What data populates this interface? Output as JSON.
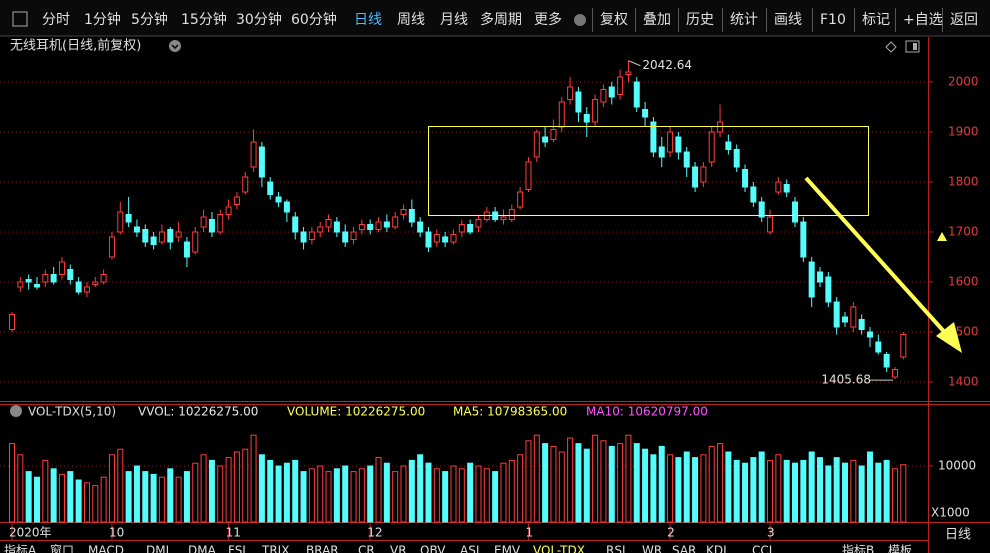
{
  "toolbar": {
    "tabs": [
      "分时",
      "1分钟",
      "5分钟",
      "15分钟",
      "30分钟",
      "60分钟",
      "日线",
      "周线",
      "月线",
      "多周期",
      "更多"
    ],
    "active_tab": "日线",
    "actions": [
      "复权",
      "叠加",
      "历史",
      "统计",
      "画线",
      "F10",
      "标记",
      "+自选",
      "返回"
    ]
  },
  "chart_data": [
    {
      "type": "candlestick",
      "title": "无线耳机(日线,前复权)",
      "categories": [
        "2020年",
        null,
        null,
        null,
        null,
        null,
        null,
        null,
        null,
        null,
        null,
        null,
        "10",
        null,
        null,
        null,
        null,
        null,
        null,
        null,
        null,
        null,
        null,
        null,
        null,
        null,
        "11",
        null,
        null,
        null,
        null,
        null,
        null,
        null,
        null,
        null,
        null,
        null,
        null,
        null,
        null,
        null,
        null,
        "12",
        null,
        null,
        null,
        null,
        null,
        null,
        null,
        null,
        null,
        null,
        null,
        null,
        null,
        null,
        null,
        null,
        null,
        null,
        "1",
        null,
        null,
        null,
        null,
        null,
        null,
        null,
        null,
        null,
        null,
        null,
        null,
        null,
        null,
        null,
        null,
        "2",
        null,
        null,
        null,
        null,
        null,
        null,
        null,
        null,
        null,
        null,
        null,
        "3",
        null,
        null,
        null,
        null,
        null,
        null,
        null,
        null,
        null,
        null,
        null,
        null,
        null,
        null,
        null,
        null
      ],
      "open": [
        1505,
        1590,
        1605,
        1595,
        1600,
        1615,
        1615,
        1625,
        1600,
        1580,
        1595,
        1600,
        1650,
        1700,
        1735,
        1710,
        1705,
        1690,
        1680,
        1705,
        1690,
        1680,
        1660,
        1710,
        1725,
        1700,
        1735,
        1755,
        1780,
        1830,
        1870,
        1800,
        1770,
        1760,
        1730,
        1700,
        1685,
        1700,
        1710,
        1720,
        1700,
        1685,
        1705,
        1715,
        1705,
        1720,
        1710,
        1735,
        1745,
        1720,
        1700,
        1680,
        1690,
        1680,
        1700,
        1715,
        1710,
        1725,
        1740,
        1725,
        1725,
        1750,
        1785,
        1850,
        1890,
        1885,
        1910,
        1965,
        1980,
        1935,
        1920,
        1960,
        1990,
        1975,
        2015,
        2000,
        1945,
        1920,
        1870,
        1860,
        1890,
        1860,
        1830,
        1800,
        1840,
        1900,
        1880,
        1865,
        1825,
        1790,
        1760,
        1700,
        1780,
        1795,
        1760,
        1720,
        1640,
        1620,
        1610,
        1560,
        1530,
        1510,
        1525,
        1500,
        1480,
        1455,
        1410,
        1450
      ],
      "high": [
        1540,
        1610,
        1615,
        1610,
        1625,
        1630,
        1650,
        1635,
        1610,
        1600,
        1610,
        1625,
        1700,
        1760,
        1770,
        1725,
        1715,
        1700,
        1715,
        1710,
        1720,
        1690,
        1710,
        1745,
        1740,
        1745,
        1765,
        1780,
        1820,
        1905,
        1880,
        1810,
        1780,
        1765,
        1740,
        1710,
        1710,
        1720,
        1735,
        1730,
        1715,
        1710,
        1725,
        1725,
        1730,
        1735,
        1740,
        1755,
        1765,
        1730,
        1710,
        1705,
        1700,
        1705,
        1725,
        1725,
        1735,
        1750,
        1750,
        1745,
        1755,
        1790,
        1850,
        1905,
        1910,
        1925,
        1970,
        2010,
        1990,
        1950,
        1975,
        1995,
        2000,
        2025,
        2042.64,
        2010,
        1960,
        1930,
        1890,
        1910,
        1900,
        1870,
        1840,
        1840,
        1910,
        1955,
        1895,
        1875,
        1835,
        1800,
        1770,
        1745,
        1810,
        1805,
        1770,
        1730,
        1650,
        1630,
        1620,
        1570,
        1540,
        1560,
        1535,
        1510,
        1495,
        1460,
        1430,
        1500
      ],
      "low": [
        1500,
        1580,
        1585,
        1585,
        1590,
        1595,
        1605,
        1595,
        1575,
        1570,
        1590,
        1595,
        1645,
        1695,
        1710,
        1690,
        1670,
        1665,
        1675,
        1665,
        1680,
        1630,
        1655,
        1700,
        1690,
        1695,
        1725,
        1745,
        1775,
        1820,
        1790,
        1765,
        1750,
        1720,
        1685,
        1665,
        1675,
        1690,
        1700,
        1690,
        1670,
        1675,
        1695,
        1695,
        1700,
        1700,
        1705,
        1725,
        1710,
        1690,
        1660,
        1670,
        1670,
        1675,
        1690,
        1695,
        1700,
        1720,
        1720,
        1715,
        1720,
        1745,
        1780,
        1840,
        1870,
        1880,
        1900,
        1955,
        1920,
        1890,
        1910,
        1950,
        1955,
        1965,
        2000,
        1940,
        1910,
        1850,
        1830,
        1850,
        1845,
        1810,
        1780,
        1790,
        1830,
        1890,
        1855,
        1820,
        1780,
        1750,
        1720,
        1695,
        1775,
        1770,
        1710,
        1640,
        1550,
        1590,
        1550,
        1495,
        1510,
        1500,
        1495,
        1470,
        1455,
        1420,
        1405.68,
        1445
      ],
      "close": [
        1535,
        1600,
        1600,
        1590,
        1615,
        1600,
        1640,
        1605,
        1580,
        1590,
        1600,
        1615,
        1690,
        1740,
        1720,
        1700,
        1680,
        1675,
        1700,
        1680,
        1700,
        1650,
        1700,
        1730,
        1700,
        1735,
        1750,
        1770,
        1810,
        1880,
        1810,
        1775,
        1760,
        1740,
        1700,
        1680,
        1700,
        1710,
        1725,
        1700,
        1680,
        1700,
        1715,
        1705,
        1720,
        1710,
        1730,
        1745,
        1720,
        1700,
        1670,
        1695,
        1680,
        1695,
        1715,
        1700,
        1725,
        1740,
        1725,
        1730,
        1745,
        1780,
        1840,
        1900,
        1880,
        1905,
        1960,
        1990,
        1940,
        1920,
        1965,
        1985,
        1970,
        2010,
        2020,
        1950,
        1930,
        1860,
        1850,
        1900,
        1860,
        1830,
        1790,
        1830,
        1900,
        1920,
        1865,
        1830,
        1790,
        1760,
        1730,
        1730,
        1800,
        1780,
        1720,
        1650,
        1570,
        1600,
        1560,
        1510,
        1520,
        1550,
        1505,
        1490,
        1460,
        1430,
        1425,
        1495
      ],
      "ylim": [
        1364,
        2088
      ],
      "yticks": [
        1400,
        1500,
        1600,
        1700,
        1800,
        1900,
        2000
      ],
      "colors": {
        "up": "#ff3c3c",
        "down": "#54fcfc"
      },
      "grid": true
    },
    {
      "type": "bar",
      "title": "VOL-TDX(5,10)",
      "readouts": [
        {
          "text": "VVOL: 10226275.00",
          "color": "#e8e8e8"
        },
        {
          "text": "VOLUME: 10226275.00",
          "color": "#ffff54"
        },
        {
          "text": "MA5: 10798365.00",
          "color": "#ffff54"
        },
        {
          "text": "MA10: 10620797.00",
          "color": "#ff54ff"
        }
      ],
      "values": [
        14000,
        12000,
        9000,
        8000,
        11000,
        9500,
        8500,
        9000,
        7500,
        7000,
        6500,
        8000,
        12000,
        13000,
        9000,
        10000,
        9000,
        8500,
        8000,
        9500,
        8000,
        9000,
        10500,
        12000,
        11000,
        10000,
        11500,
        12500,
        13000,
        15500,
        12000,
        11000,
        10000,
        10500,
        11000,
        9000,
        9500,
        10000,
        9000,
        9500,
        10000,
        9000,
        9500,
        10000,
        11500,
        10500,
        9000,
        10000,
        11000,
        12000,
        10500,
        9500,
        9000,
        10000,
        9500,
        10500,
        10000,
        9500,
        9000,
        10500,
        11000,
        12000,
        14500,
        15500,
        14000,
        13500,
        12500,
        15000,
        14000,
        13000,
        15500,
        14500,
        13500,
        14000,
        15500,
        14000,
        13000,
        12000,
        13500,
        12000,
        11500,
        12500,
        11500,
        12000,
        13500,
        14000,
        12500,
        11000,
        10500,
        11500,
        12500,
        11000,
        12000,
        11000,
        10500,
        11000,
        12500,
        11500,
        10000,
        11500,
        10500,
        11000,
        10000,
        12500,
        10500,
        11000,
        9500,
        10226.275
      ],
      "ylim": [
        0,
        21250
      ],
      "yticks": [
        10000
      ],
      "unit": "X1000"
    }
  ],
  "period_label": "日线",
  "indicator_tabs": [
    "指标A",
    "窗口",
    "MACD",
    "DMI",
    "DMA",
    "FSL",
    "TRIX",
    "BRAR",
    "CR",
    "VR",
    "OBV",
    "ASI",
    "EMV",
    "VOL-TDX",
    "RSI",
    "WR",
    "SAR",
    "KDJ",
    "CCI",
    "指标B",
    "模板"
  ],
  "active_indicator": "VOL-TDX"
}
